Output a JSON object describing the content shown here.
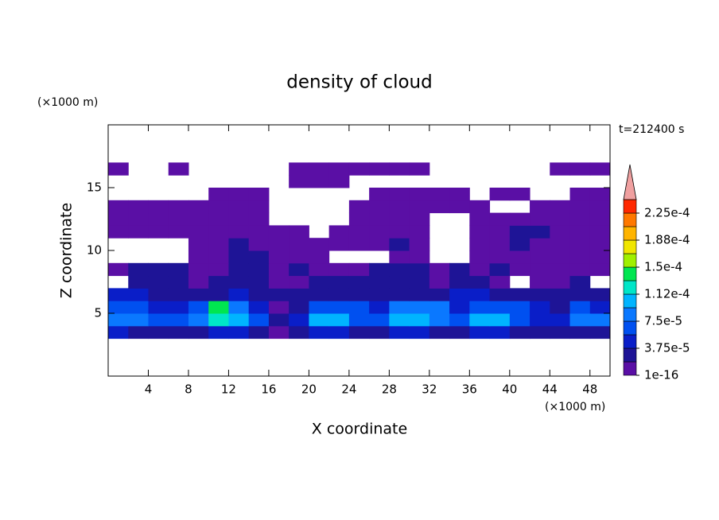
{
  "chart_data": {
    "type": "contour",
    "title": "density of cloud",
    "x_label": "X coordinate",
    "y_label": "Z coordinate",
    "x_unit": "(×1000 m)",
    "y_unit": "(×1000 m)",
    "annotation": "t=212400 s",
    "xlim": [
      0,
      50
    ],
    "ylim": [
      0,
      20
    ],
    "xticks": [
      4,
      8,
      12,
      16,
      20,
      24,
      28,
      32,
      36,
      40,
      44,
      48
    ],
    "yticks": [
      5,
      10,
      15
    ],
    "x": [
      1,
      3,
      5,
      7,
      9,
      11,
      13,
      15,
      17,
      19,
      21,
      23,
      25,
      27,
      29,
      31,
      33,
      35,
      37,
      39,
      41,
      43,
      45,
      47,
      49
    ],
    "z": [
      3.5,
      4.5,
      5.5,
      6.5,
      7.5,
      8.5,
      9.5,
      10.5,
      11.5,
      12.5,
      13.5,
      14.5,
      15.5,
      16.5
    ],
    "values": [
      [
        4e-05,
        2e-05,
        2e-05,
        2e-05,
        2e-05,
        4e-05,
        4e-05,
        2e-05,
        1e-16,
        2e-05,
        4e-05,
        4e-05,
        2e-05,
        2e-05,
        4e-05,
        4e-05,
        2e-05,
        2e-05,
        4e-05,
        4e-05,
        2e-05,
        2e-05,
        2e-05,
        2e-05,
        2e-05
      ],
      [
        8e-05,
        8e-05,
        6e-05,
        6e-05,
        8e-05,
        0.00012,
        0.0001,
        6e-05,
        2e-05,
        4e-05,
        0.0001,
        0.0001,
        6e-05,
        6e-05,
        0.0001,
        0.0001,
        8e-05,
        6e-05,
        0.0001,
        0.0001,
        6e-05,
        4e-05,
        4e-05,
        8e-05,
        8e-05
      ],
      [
        6e-05,
        6e-05,
        4e-05,
        4e-05,
        6e-05,
        0.00014,
        8e-05,
        4e-05,
        1e-16,
        2e-05,
        6e-05,
        6e-05,
        6e-05,
        4e-05,
        8e-05,
        8e-05,
        8e-05,
        4e-05,
        6e-05,
        6e-05,
        6e-05,
        4e-05,
        2e-05,
        6e-05,
        4e-05
      ],
      [
        4e-05,
        4e-05,
        2e-05,
        2e-05,
        2e-05,
        2e-05,
        4e-05,
        2e-05,
        2e-05,
        2e-05,
        2e-05,
        2e-05,
        2e-05,
        2e-05,
        2e-05,
        2e-05,
        2e-05,
        4e-05,
        4e-05,
        2e-05,
        2e-05,
        2e-05,
        2e-05,
        2e-05,
        2e-05
      ],
      [
        null,
        2e-05,
        2e-05,
        2e-05,
        1e-16,
        2e-05,
        2e-05,
        2e-05,
        1e-16,
        1e-16,
        2e-05,
        2e-05,
        2e-05,
        2e-05,
        2e-05,
        2e-05,
        1e-16,
        2e-05,
        2e-05,
        1e-16,
        null,
        1e-16,
        1e-16,
        2e-05,
        null
      ],
      [
        1e-16,
        2e-05,
        2e-05,
        2e-05,
        1e-16,
        1e-16,
        2e-05,
        2e-05,
        1e-16,
        2e-05,
        1e-16,
        1e-16,
        1e-16,
        2e-05,
        2e-05,
        2e-05,
        1e-16,
        2e-05,
        1e-16,
        2e-05,
        1e-16,
        1e-16,
        1e-16,
        1e-16,
        1e-16
      ],
      [
        null,
        null,
        null,
        null,
        1e-16,
        1e-16,
        2e-05,
        2e-05,
        1e-16,
        1e-16,
        1e-16,
        null,
        null,
        null,
        1e-16,
        1e-16,
        null,
        null,
        1e-16,
        1e-16,
        1e-16,
        1e-16,
        1e-16,
        1e-16,
        1e-16
      ],
      [
        null,
        null,
        null,
        null,
        1e-16,
        1e-16,
        2e-05,
        1e-16,
        1e-16,
        1e-16,
        1e-16,
        1e-16,
        1e-16,
        1e-16,
        2e-05,
        1e-16,
        null,
        null,
        1e-16,
        1e-16,
        2e-05,
        1e-16,
        1e-16,
        1e-16,
        1e-16
      ],
      [
        1e-16,
        1e-16,
        1e-16,
        1e-16,
        1e-16,
        1e-16,
        1e-16,
        1e-16,
        1e-16,
        1e-16,
        null,
        1e-16,
        1e-16,
        1e-16,
        1e-16,
        1e-16,
        null,
        null,
        1e-16,
        1e-16,
        2e-05,
        2e-05,
        1e-16,
        1e-16,
        1e-16
      ],
      [
        1e-16,
        1e-16,
        1e-16,
        1e-16,
        1e-16,
        1e-16,
        1e-16,
        1e-16,
        null,
        null,
        null,
        null,
        1e-16,
        1e-16,
        1e-16,
        1e-16,
        null,
        null,
        1e-16,
        1e-16,
        1e-16,
        1e-16,
        1e-16,
        1e-16,
        1e-16
      ],
      [
        1e-16,
        1e-16,
        1e-16,
        1e-16,
        1e-16,
        1e-16,
        1e-16,
        1e-16,
        null,
        null,
        null,
        null,
        1e-16,
        1e-16,
        1e-16,
        1e-16,
        1e-16,
        1e-16,
        1e-16,
        null,
        null,
        1e-16,
        1e-16,
        1e-16,
        1e-16
      ],
      [
        null,
        null,
        null,
        null,
        null,
        1e-16,
        1e-16,
        1e-16,
        null,
        null,
        null,
        null,
        null,
        1e-16,
        1e-16,
        1e-16,
        1e-16,
        1e-16,
        null,
        1e-16,
        1e-16,
        null,
        null,
        1e-16,
        1e-16
      ],
      [
        null,
        null,
        null,
        null,
        null,
        null,
        null,
        null,
        null,
        1e-16,
        1e-16,
        1e-16,
        null,
        null,
        null,
        null,
        null,
        null,
        null,
        null,
        null,
        null,
        null,
        null,
        null
      ],
      [
        1e-16,
        null,
        null,
        1e-16,
        null,
        null,
        null,
        null,
        null,
        1e-16,
        1e-16,
        1e-16,
        1e-16,
        1e-16,
        1e-16,
        1e-16,
        null,
        null,
        null,
        null,
        null,
        null,
        1e-16,
        1e-16,
        1e-16
      ]
    ],
    "colorbar": {
      "levels": [
        1e-16,
        1.875e-05,
        3.75e-05,
        5.625e-05,
        7.5e-05,
        9.375e-05,
        0.0001125,
        0.00013125,
        0.00015,
        0.00016875,
        0.0001875,
        0.00020625,
        0.000225,
        0.00024375
      ],
      "colors": [
        "#5a0fa5",
        "#1e1496",
        "#0a1ec8",
        "#0050f0",
        "#0a78ff",
        "#00b4ff",
        "#00e6c8",
        "#00e650",
        "#a0f000",
        "#f0e600",
        "#ffb400",
        "#ff7800",
        "#ff2800"
      ],
      "extend_color": "#f0a0a0",
      "ticks": [
        {
          "value": 1e-16,
          "label": "1e-16"
        },
        {
          "value": 3.75e-05,
          "label": "3.75e-5"
        },
        {
          "value": 7.5e-05,
          "label": "7.5e-5"
        },
        {
          "value": 0.0001125,
          "label": "1.12e-4"
        },
        {
          "value": 0.00015,
          "label": "1.5e-4"
        },
        {
          "value": 0.0001875,
          "label": "1.88e-4"
        },
        {
          "value": 0.000225,
          "label": "2.25e-4"
        }
      ]
    }
  }
}
